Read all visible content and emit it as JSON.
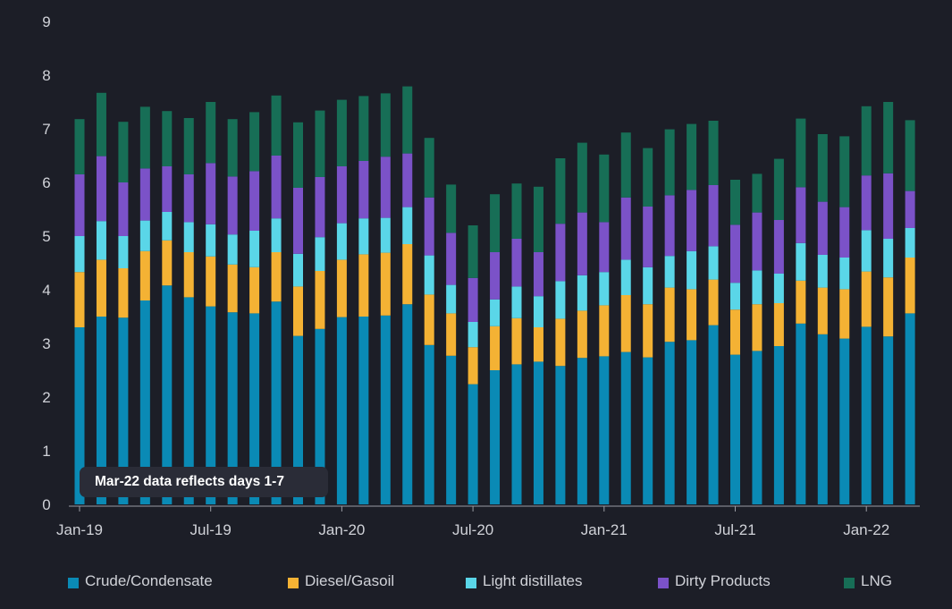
{
  "chart_data": {
    "type": "bar",
    "stacked": true,
    "categories": [
      "Jan-19",
      "Feb-19",
      "Mar-19",
      "Apr-19",
      "May-19",
      "Jun-19",
      "Jul-19",
      "Aug-19",
      "Sep-19",
      "Oct-19",
      "Nov-19",
      "Dec-19",
      "Jan-20",
      "Feb-20",
      "Mar-20",
      "Apr-20",
      "May-20",
      "Jun-20",
      "Jul-20",
      "Aug-20",
      "Sep-20",
      "Oct-20",
      "Nov-20",
      "Dec-20",
      "Jan-21",
      "Feb-21",
      "Mar-21",
      "Apr-21",
      "May-21",
      "Jun-21",
      "Jul-21",
      "Aug-21",
      "Sep-21",
      "Oct-21",
      "Nov-21",
      "Dec-21",
      "Jan-22",
      "Feb-22",
      "Mar-22"
    ],
    "x_tick_labels": [
      "Jan-19",
      "Jul-19",
      "Jan-20",
      "Jul-20",
      "Jan-21",
      "Jul-21",
      "Jan-22"
    ],
    "x_tick_indices": [
      0,
      6,
      12,
      18,
      24,
      30,
      36
    ],
    "y_ticks": [
      0,
      1,
      2,
      3,
      4,
      5,
      6,
      7,
      8,
      9
    ],
    "ylim": [
      0,
      9
    ],
    "series": [
      {
        "name": "Crude/Condensate",
        "color": "#0a8ab5",
        "values": [
          3.3,
          3.5,
          3.48,
          3.8,
          4.08,
          3.86,
          3.69,
          3.58,
          3.56,
          3.78,
          3.14,
          3.27,
          3.49,
          3.5,
          3.52,
          3.73,
          2.97,
          2.77,
          2.24,
          2.5,
          2.61,
          2.66,
          2.58,
          2.73,
          2.76,
          2.84,
          2.74,
          3.03,
          3.06,
          3.34,
          2.79,
          2.86,
          2.95,
          3.37,
          3.17,
          3.09,
          3.31,
          3.13,
          3.56
        ]
      },
      {
        "name": "Diesel/Gasoil",
        "color": "#f4b234",
        "values": [
          1.03,
          1.06,
          0.92,
          0.92,
          0.84,
          0.84,
          0.93,
          0.89,
          0.86,
          0.92,
          0.92,
          1.08,
          1.07,
          1.16,
          1.17,
          1.12,
          0.94,
          0.79,
          0.69,
          0.82,
          0.86,
          0.64,
          0.88,
          0.88,
          0.95,
          1.06,
          0.99,
          1.01,
          0.95,
          0.85,
          0.84,
          0.87,
          0.8,
          0.8,
          0.87,
          0.92,
          1.03,
          1.1,
          1.04
        ]
      },
      {
        "name": "Light distillates",
        "color": "#5ad6e8",
        "values": [
          0.67,
          0.72,
          0.6,
          0.57,
          0.53,
          0.56,
          0.6,
          0.56,
          0.68,
          0.63,
          0.61,
          0.63,
          0.68,
          0.67,
          0.65,
          0.69,
          0.73,
          0.53,
          0.47,
          0.5,
          0.59,
          0.58,
          0.7,
          0.66,
          0.62,
          0.66,
          0.69,
          0.59,
          0.71,
          0.62,
          0.5,
          0.63,
          0.55,
          0.7,
          0.61,
          0.59,
          0.77,
          0.72,
          0.55
        ]
      },
      {
        "name": "Dirty Products",
        "color": "#7b52c8",
        "values": [
          1.15,
          1.21,
          1.0,
          0.97,
          0.85,
          0.89,
          1.14,
          1.08,
          1.11,
          1.17,
          1.23,
          1.12,
          1.06,
          1.07,
          1.14,
          1.0,
          1.08,
          0.97,
          0.82,
          0.88,
          0.89,
          0.82,
          1.07,
          1.17,
          0.93,
          1.16,
          1.13,
          1.13,
          1.14,
          1.14,
          1.08,
          1.08,
          1.0,
          1.04,
          0.99,
          0.94,
          1.02,
          1.22,
          0.69
        ]
      },
      {
        "name": "LNG",
        "color": "#176e56",
        "values": [
          1.03,
          1.18,
          1.13,
          1.15,
          1.03,
          1.05,
          1.14,
          1.07,
          1.1,
          1.12,
          1.22,
          1.24,
          1.24,
          1.21,
          1.18,
          1.25,
          1.11,
          0.9,
          0.98,
          1.08,
          1.03,
          1.22,
          1.22,
          1.3,
          1.26,
          1.21,
          1.09,
          1.23,
          1.23,
          1.2,
          0.84,
          0.72,
          1.14,
          1.28,
          1.26,
          1.32,
          1.29,
          1.33,
          1.32
        ]
      }
    ],
    "annotation": "Mar-22 data reflects days 1-7",
    "legend_position": "bottom",
    "grid": false,
    "xlabel": "",
    "ylabel": ""
  }
}
